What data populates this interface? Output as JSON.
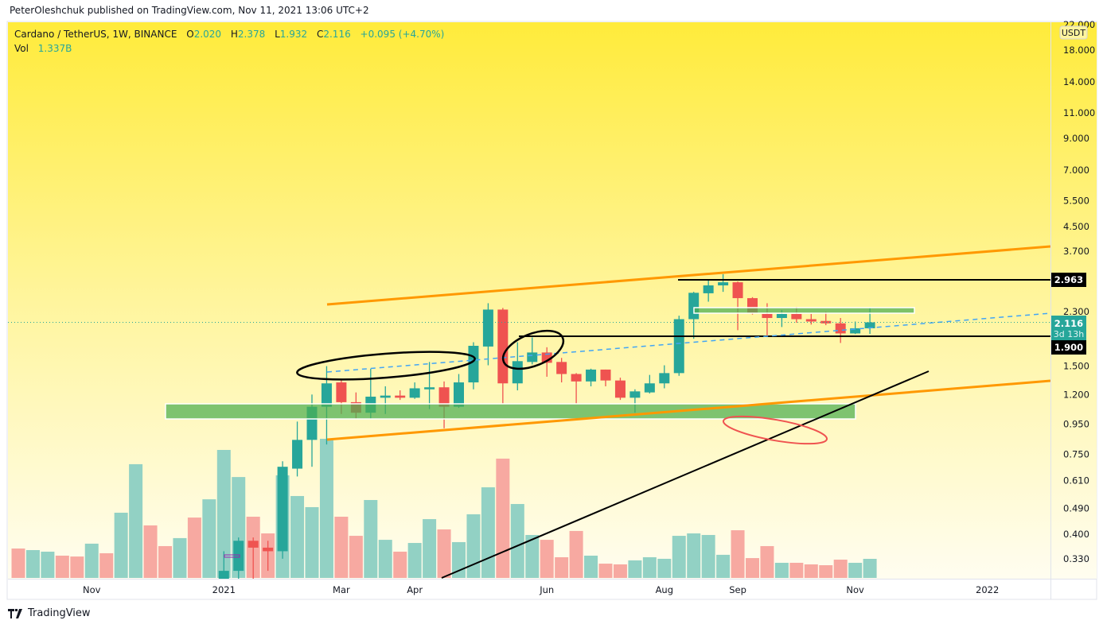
{
  "attribution": "PeterOleshchuk published on TradingView.com, Nov 11, 2021 13:06 UTC+2",
  "legend": {
    "symbol": "Cardano / TetherUS, 1W, BINANCE",
    "open_label": "O",
    "open": "2.020",
    "high_label": "H",
    "high": "2.378",
    "low_label": "L",
    "low": "1.932",
    "close_label": "C",
    "close": "2.116",
    "change": "+0.095 (+4.70%)",
    "vol_label": "Vol",
    "vol": "1.337B"
  },
  "footer": {
    "brand": "TradingView",
    "logo_icon": "tradingview-logo-icon"
  },
  "price_scale": {
    "currency": "USDT",
    "badges": {
      "level_high": "2.963",
      "last_price": "2.116",
      "countdown": "3d 13h",
      "level_low": "1.900"
    }
  },
  "colors": {
    "up": "#26a69a",
    "down": "#ef5350",
    "vol_up": "#92d1c4",
    "vol_down": "#f7a9a1",
    "trend_channel": "#ff9800",
    "zone": "#4caf50",
    "background_top": "#ffeb3b",
    "background_bottom": "#fffdf0"
  },
  "chart_data": {
    "type": "candlestick",
    "title": "",
    "scale": "log",
    "ylim": [
      0.28,
      22
    ],
    "y_ticks": [
      "22.000",
      "18.000",
      "14.000",
      "11.000",
      "9.000",
      "7.000",
      "5.500",
      "4.500",
      "3.700",
      "2.300",
      "1.500",
      "1.200",
      "0.950",
      "0.750",
      "0.610",
      "0.490",
      "0.400",
      "0.330"
    ],
    "x_ticks": [
      {
        "label": "Nov",
        "date": "2020-11-02"
      },
      {
        "label": "2021",
        "date": "2021-01-04"
      },
      {
        "label": "Mar",
        "date": "2021-03-01"
      },
      {
        "label": "Apr",
        "date": "2021-04-05"
      },
      {
        "label": "Jun",
        "date": "2021-06-07"
      },
      {
        "label": "Aug",
        "date": "2021-08-02"
      },
      {
        "label": "Sep",
        "date": "2021-09-06"
      },
      {
        "label": "Nov",
        "date": "2021-11-01"
      },
      {
        "label": "2022",
        "date": "2022-01-03"
      }
    ],
    "grid": false,
    "levels": {
      "resistance": 2.963,
      "support": 1.9,
      "last": 2.116
    },
    "bars": [
      {
        "t": "2020-09-28",
        "dir": "down",
        "v": 2.06
      },
      {
        "t": "2020-10-05",
        "dir": "up",
        "v": 1.95
      },
      {
        "t": "2020-10-12",
        "dir": "up",
        "v": 1.84
      },
      {
        "t": "2020-10-19",
        "dir": "down",
        "v": 1.56
      },
      {
        "t": "2020-10-26",
        "dir": "down",
        "v": 1.5
      },
      {
        "t": "2020-11-02",
        "dir": "up",
        "v": 2.4
      },
      {
        "t": "2020-11-09",
        "dir": "down",
        "v": 1.73
      },
      {
        "t": "2020-11-16",
        "dir": "up",
        "v": 4.57
      },
      {
        "t": "2020-11-23",
        "dir": "up",
        "v": 7.97
      },
      {
        "t": "2020-11-30",
        "dir": "down",
        "v": 3.68
      },
      {
        "t": "2020-12-07",
        "dir": "down",
        "v": 2.23
      },
      {
        "t": "2020-12-14",
        "dir": "up",
        "v": 2.79
      },
      {
        "t": "2020-12-21",
        "dir": "down",
        "v": 4.23
      },
      {
        "t": "2020-12-28",
        "dir": "up",
        "v": 5.51
      },
      {
        "t": "2021-01-04",
        "o": 0.28,
        "h": 0.35,
        "l": 0.27,
        "c": 0.3,
        "v": 8.97
      },
      {
        "t": "2021-01-11",
        "o": 0.3,
        "h": 0.39,
        "l": 0.28,
        "c": 0.38,
        "v": 7.07
      },
      {
        "t": "2021-01-18",
        "o": 0.38,
        "h": 0.39,
        "l": 0.28,
        "c": 0.36,
        "v": 4.29
      },
      {
        "t": "2021-01-25",
        "o": 0.36,
        "h": 0.38,
        "l": 0.3,
        "c": 0.35,
        "v": 3.12
      },
      {
        "t": "2021-02-01",
        "o": 0.35,
        "h": 0.71,
        "l": 0.33,
        "c": 0.68,
        "v": 7.19
      },
      {
        "t": "2021-02-08",
        "o": 0.67,
        "h": 0.97,
        "l": 0.63,
        "c": 0.84,
        "v": 5.74
      },
      {
        "t": "2021-02-15",
        "o": 0.84,
        "h": 1.2,
        "l": 0.68,
        "c": 1.09,
        "v": 4.96
      },
      {
        "t": "2021-02-22",
        "o": 1.09,
        "h": 1.5,
        "l": 0.81,
        "c": 1.31,
        "v": 9.75
      },
      {
        "t": "2021-03-01",
        "o": 1.32,
        "h": 1.35,
        "l": 1.03,
        "c": 1.13,
        "v": 4.29
      },
      {
        "t": "2021-03-08",
        "o": 1.13,
        "h": 1.22,
        "l": 0.99,
        "c": 1.04,
        "v": 2.95
      },
      {
        "t": "2021-03-15",
        "o": 1.04,
        "h": 1.47,
        "l": 0.99,
        "c": 1.18,
        "v": 5.46
      },
      {
        "t": "2021-03-22",
        "o": 1.17,
        "h": 1.28,
        "l": 1.03,
        "c": 1.19,
        "v": 2.67
      },
      {
        "t": "2021-03-29",
        "o": 1.19,
        "h": 1.24,
        "l": 1.15,
        "c": 1.17,
        "v": 1.84
      },
      {
        "t": "2021-04-05",
        "o": 1.17,
        "h": 1.32,
        "l": 1.16,
        "c": 1.26,
        "v": 2.45
      },
      {
        "t": "2021-04-12",
        "o": 1.25,
        "h": 1.55,
        "l": 1.07,
        "c": 1.27,
        "v": 4.12
      },
      {
        "t": "2021-04-19",
        "o": 1.27,
        "h": 1.33,
        "l": 0.92,
        "c": 1.09,
        "v": 3.4
      },
      {
        "t": "2021-04-26",
        "o": 1.09,
        "h": 1.41,
        "l": 1.08,
        "c": 1.32,
        "v": 2.51
      },
      {
        "t": "2021-05-03",
        "o": 1.32,
        "h": 1.81,
        "l": 1.25,
        "c": 1.76,
        "v": 4.46
      },
      {
        "t": "2021-05-10",
        "o": 1.75,
        "h": 2.46,
        "l": 1.51,
        "c": 2.34,
        "v": 6.35
      },
      {
        "t": "2021-05-17",
        "o": 2.34,
        "h": 2.37,
        "l": 1.12,
        "c": 1.31,
        "v": 8.36
      },
      {
        "t": "2021-05-24",
        "o": 1.31,
        "h": 1.81,
        "l": 1.24,
        "c": 1.56,
        "v": 5.18
      },
      {
        "t": "2021-05-31",
        "o": 1.55,
        "h": 1.88,
        "l": 1.52,
        "c": 1.67,
        "v": 3.01
      },
      {
        "t": "2021-06-07",
        "o": 1.67,
        "h": 1.74,
        "l": 1.38,
        "c": 1.54,
        "v": 2.67
      },
      {
        "t": "2021-06-14",
        "o": 1.55,
        "h": 1.6,
        "l": 1.32,
        "c": 1.41,
        "v": 1.45
      },
      {
        "t": "2021-06-21",
        "o": 1.41,
        "h": 1.42,
        "l": 1.12,
        "c": 1.33,
        "v": 3.29
      },
      {
        "t": "2021-06-28",
        "o": 1.33,
        "h": 1.47,
        "l": 1.28,
        "c": 1.46,
        "v": 1.56
      },
      {
        "t": "2021-07-05",
        "o": 1.46,
        "h": 1.46,
        "l": 1.28,
        "c": 1.34,
        "v": 1.0
      },
      {
        "t": "2021-07-12",
        "o": 1.34,
        "h": 1.37,
        "l": 1.15,
        "c": 1.17,
        "v": 0.95
      },
      {
        "t": "2021-07-19",
        "o": 1.17,
        "h": 1.25,
        "l": 1.04,
        "c": 1.23,
        "v": 1.23
      },
      {
        "t": "2021-07-26",
        "o": 1.22,
        "h": 1.4,
        "l": 1.21,
        "c": 1.31,
        "v": 1.45
      },
      {
        "t": "2021-08-02",
        "o": 1.31,
        "h": 1.51,
        "l": 1.26,
        "c": 1.42,
        "v": 1.34
      },
      {
        "t": "2021-08-09",
        "o": 1.42,
        "h": 2.23,
        "l": 1.39,
        "c": 2.17,
        "v": 2.95
      },
      {
        "t": "2021-08-16",
        "o": 2.17,
        "h": 2.69,
        "l": 1.86,
        "c": 2.67,
        "v": 3.12
      },
      {
        "t": "2021-08-23",
        "o": 2.66,
        "h": 2.94,
        "l": 2.49,
        "c": 2.83,
        "v": 3.01
      },
      {
        "t": "2021-08-30",
        "o": 2.83,
        "h": 3.09,
        "l": 2.69,
        "c": 2.9,
        "v": 1.62
      },
      {
        "t": "2021-09-06",
        "o": 2.9,
        "h": 2.92,
        "l": 1.99,
        "c": 2.56,
        "v": 3.34
      },
      {
        "t": "2021-09-13",
        "o": 2.56,
        "h": 2.58,
        "l": 2.25,
        "c": 2.27,
        "v": 1.39
      },
      {
        "t": "2021-09-20",
        "o": 2.26,
        "h": 2.46,
        "l": 1.89,
        "c": 2.19,
        "v": 2.23
      },
      {
        "t": "2021-09-27",
        "o": 2.19,
        "h": 2.33,
        "l": 2.04,
        "c": 2.26,
        "v": 1.06
      },
      {
        "t": "2021-10-04",
        "o": 2.26,
        "h": 2.39,
        "l": 2.11,
        "c": 2.17,
        "v": 1.06
      },
      {
        "t": "2021-10-11",
        "o": 2.17,
        "h": 2.26,
        "l": 2.08,
        "c": 2.13,
        "v": 0.95
      },
      {
        "t": "2021-10-18",
        "o": 2.14,
        "h": 2.3,
        "l": 2.07,
        "c": 2.1,
        "v": 0.89
      },
      {
        "t": "2021-10-25",
        "o": 2.1,
        "h": 2.19,
        "l": 1.8,
        "c": 1.94,
        "v": 1.28
      },
      {
        "t": "2021-11-01",
        "o": 1.94,
        "h": 2.13,
        "l": 1.93,
        "c": 2.02,
        "v": 1.06
      },
      {
        "t": "2021-11-08",
        "o": 2.02,
        "h": 2.378,
        "l": 1.932,
        "c": 2.116,
        "v": 1.337
      }
    ]
  }
}
